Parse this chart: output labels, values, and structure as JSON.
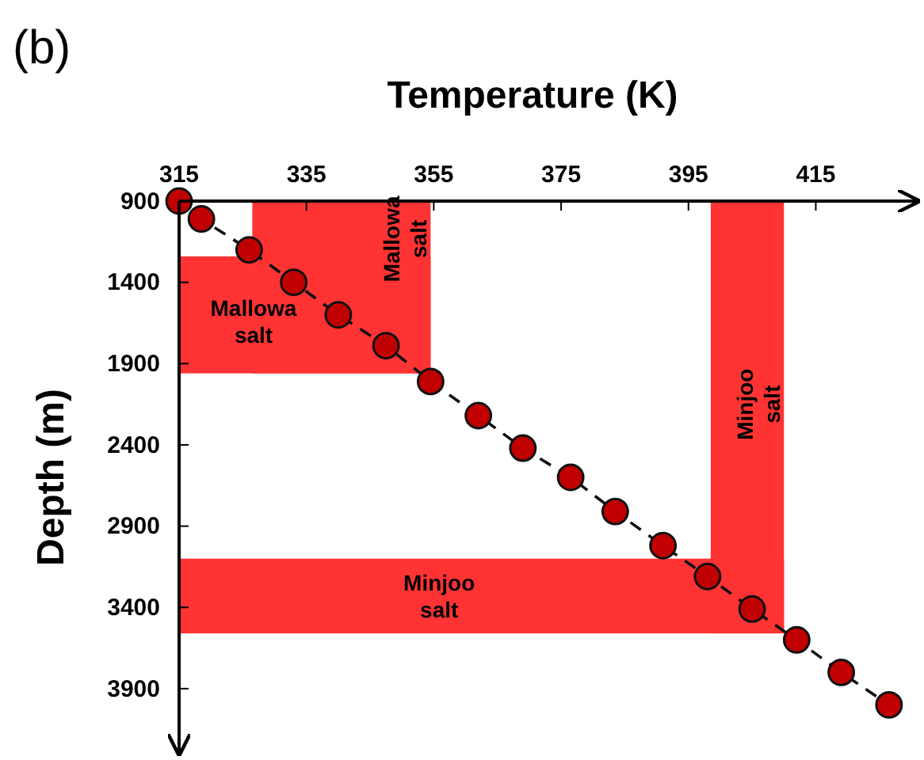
{
  "chart_data": {
    "type": "line",
    "title": "(b)",
    "xlabel": "Temperature (K)",
    "ylabel": "Depth (m)",
    "xlim": [
      315,
      431
    ],
    "xticks": [
      315,
      335,
      355,
      375,
      395,
      415
    ],
    "ylim": [
      4300,
      900
    ],
    "yticks": [
      900,
      1400,
      1900,
      2400,
      2900,
      3400,
      3900
    ],
    "series": [
      {
        "color": "#c00000",
        "marker": "circle",
        "line_style": "dashed",
        "x": [
          315,
          318.5,
          326,
          333,
          340,
          347.5,
          354.5,
          362,
          369,
          376.5,
          383.5,
          391,
          398,
          405,
          412,
          419,
          426.5
        ],
        "values": [
          900,
          1010,
          1200,
          1400,
          1600,
          1790,
          2010,
          2220,
          2420,
          2600,
          2810,
          3020,
          3210,
          3410,
          3600,
          3800,
          4000
        ]
      }
    ],
    "bands": [
      {
        "axis": "x",
        "from": 326.5,
        "to": 354.5,
        "label": "Mallowa salt",
        "color": "#ff3333"
      },
      {
        "axis": "y",
        "from": 1240,
        "to": 1960,
        "label": "Mallowa salt",
        "color": "#ff3333"
      },
      {
        "axis": "x",
        "from": 398.5,
        "to": 410,
        "label": "Minjoo salt",
        "color": "#ff3333"
      },
      {
        "axis": "y",
        "from": 3100,
        "to": 3560,
        "label": "Minjoo salt",
        "color": "#ff3333"
      }
    ],
    "grid": false
  }
}
